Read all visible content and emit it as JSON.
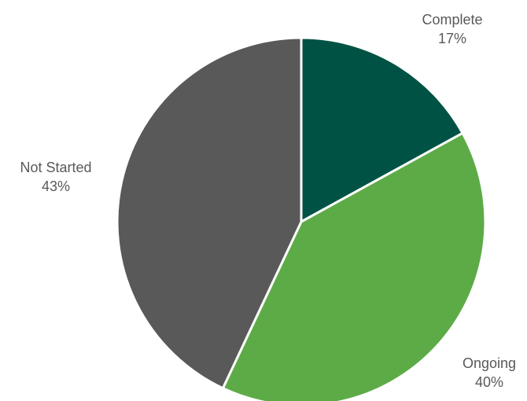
{
  "chart_data": {
    "type": "pie",
    "title": "",
    "legend": "none",
    "slices": [
      {
        "label": "Complete",
        "value": 17,
        "value_label": "17%",
        "color": "#005344"
      },
      {
        "label": "Ongoing",
        "value": 40,
        "value_label": "40%",
        "color": "#5dab47"
      },
      {
        "label": "Not Started",
        "value": 43,
        "value_label": "43%",
        "color": "#595959"
      }
    ],
    "start_angle_deg": 0,
    "direction": "clockwise",
    "separator_color": "#ffffff"
  }
}
